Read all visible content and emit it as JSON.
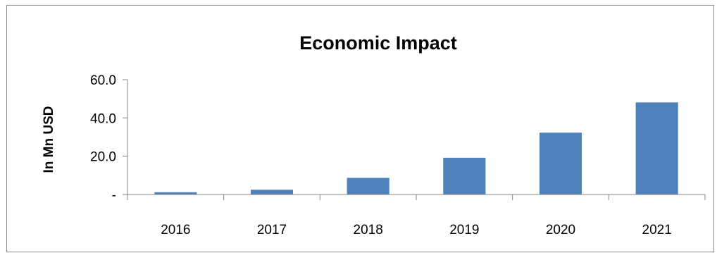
{
  "chart_data": {
    "type": "bar",
    "title": "Economic Impact",
    "xlabel": "",
    "ylabel": "In Mn USD",
    "categories": [
      "2016",
      "2017",
      "2018",
      "2019",
      "2020",
      "2021"
    ],
    "values": [
      1.2,
      2.5,
      8.7,
      19.2,
      32.3,
      48.1
    ],
    "ylim": [
      0,
      60
    ],
    "yticks": [
      0,
      20,
      40,
      60
    ],
    "ytick_labels": [
      "-",
      "20.0",
      "40.0",
      "60.0"
    ],
    "bar_color": "#4f81bd",
    "grid": false,
    "legend": "none"
  }
}
